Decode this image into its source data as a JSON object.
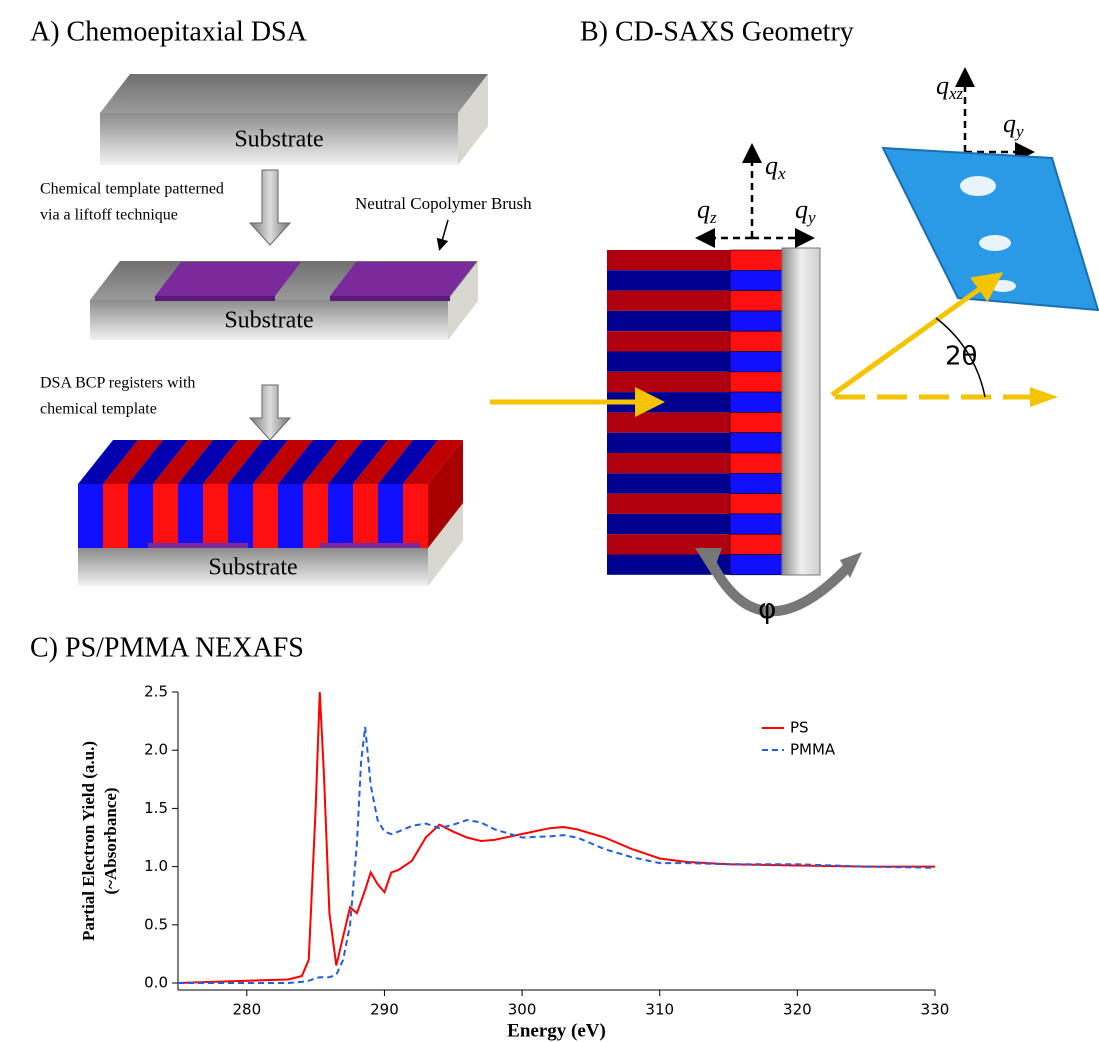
{
  "panel_a": {
    "title": "A) Chemoepitaxial DSA",
    "substrate_labels": [
      "Substrate",
      "Substrate",
      "Substrate"
    ],
    "step1_caption": [
      "Chemical template patterned",
      "via a liftoff technique"
    ],
    "brush_label": "Neutral Copolymer Brush",
    "step2_caption": [
      "DSA BCP registers with",
      "chemical template"
    ]
  },
  "panel_b": {
    "title": "B) CD-SAXS Geometry",
    "sample_axes": [
      {
        "base": "q",
        "sub": "x"
      },
      {
        "base": "q",
        "sub": "z"
      },
      {
        "base": "q",
        "sub": "y"
      }
    ],
    "detector_axes": [
      {
        "base": "q",
        "sub": "xz"
      },
      {
        "base": "q",
        "sub": "y"
      }
    ],
    "angle_label": "2θ",
    "rotation_label": "φ"
  },
  "panel_c": {
    "title": "C) PS/PMMA NEXAFS"
  },
  "chart_data": {
    "type": "line",
    "xlabel": "Energy (eV)",
    "ylabel": [
      "Partial Electron Yield (a.u.)",
      "(~Absorbance)"
    ],
    "x": [
      275,
      280,
      283,
      284,
      284.5,
      285,
      285.3,
      285.6,
      286,
      286.5,
      287,
      287.5,
      288,
      288.3,
      288.6,
      289,
      289.5,
      290,
      290.5,
      291,
      292,
      293,
      294,
      295,
      296,
      297,
      298,
      300,
      302,
      303,
      304,
      306,
      308,
      310,
      312,
      315,
      320,
      325,
      330
    ],
    "series": [
      {
        "name": "PS",
        "color": "#ff0000",
        "dash": false,
        "values": [
          0,
          0.02,
          0.03,
          0.06,
          0.2,
          1.5,
          2.5,
          1.8,
          0.6,
          0.15,
          0.4,
          0.65,
          0.6,
          0.7,
          0.8,
          0.95,
          0.85,
          0.78,
          0.95,
          0.97,
          1.05,
          1.25,
          1.36,
          1.3,
          1.25,
          1.22,
          1.23,
          1.28,
          1.33,
          1.34,
          1.32,
          1.25,
          1.15,
          1.07,
          1.04,
          1.02,
          1.01,
          1,
          1
        ]
      },
      {
        "name": "PMMA",
        "color": "#1f5fe0",
        "dash": true,
        "values": [
          0,
          0,
          0,
          0.01,
          0.02,
          0.04,
          0.05,
          0.05,
          0.05,
          0.07,
          0.2,
          0.5,
          1.2,
          1.9,
          2.2,
          1.7,
          1.4,
          1.3,
          1.28,
          1.3,
          1.35,
          1.37,
          1.33,
          1.36,
          1.4,
          1.38,
          1.32,
          1.25,
          1.26,
          1.27,
          1.25,
          1.15,
          1.08,
          1.03,
          1.03,
          1.02,
          1.02,
          1,
          0.99
        ]
      }
    ],
    "xlim": [
      275,
      330
    ],
    "xticks": [
      280,
      290,
      300,
      310,
      320,
      330
    ],
    "ylim": [
      -0.06,
      2.5
    ],
    "yticks": [
      {
        "value": 0,
        "label": "0.0"
      },
      0.5,
      {
        "value": 1,
        "label": "1.0"
      },
      1.5,
      {
        "value": 2,
        "label": "2.0"
      },
      2.5
    ],
    "legend": "upper right"
  }
}
